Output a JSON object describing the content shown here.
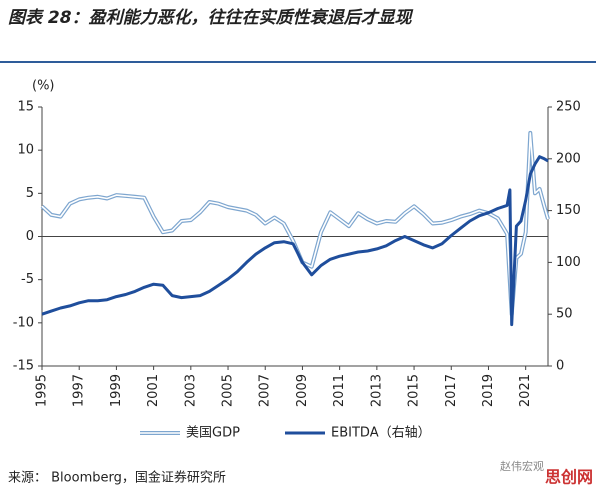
{
  "chart_data": {
    "type": "line",
    "title": "图表 28：盈利能力恶化，往往在实质性衰退后才显现",
    "y_label": "(%)",
    "source": "来源： Bloomberg，国金证券研究所",
    "watermark": "赵伟宏观",
    "watermark2": "思创网",
    "xlim": [
      1995,
      2022.2
    ],
    "xticks": [
      1995,
      1997,
      1999,
      2001,
      2003,
      2005,
      2007,
      2009,
      2011,
      2013,
      2015,
      2017,
      2019,
      2021
    ],
    "ylim": [
      -15,
      15
    ],
    "yticks": [
      -15,
      -10,
      -5,
      0,
      5,
      10,
      15
    ],
    "y2lim": [
      0,
      250
    ],
    "y2ticks": [
      0,
      50,
      100,
      150,
      200,
      250
    ],
    "series": [
      {
        "name": "美国GDP",
        "color": "#7ea6cf",
        "style": "double",
        "x": [
          1995,
          1995.5,
          1996,
          1996.5,
          1997,
          1997.5,
          1998,
          1998.5,
          1999,
          1999.5,
          2000,
          2000.5,
          2001,
          2001.5,
          2002,
          2002.5,
          2003,
          2003.5,
          2004,
          2004.5,
          2005,
          2005.5,
          2006,
          2006.5,
          2007,
          2007.5,
          2008,
          2008.5,
          2009,
          2009.5,
          2010,
          2010.5,
          2011,
          2011.5,
          2012,
          2012.5,
          2013,
          2013.5,
          2014,
          2014.5,
          2015,
          2015.5,
          2016,
          2016.5,
          2017,
          2017.5,
          2018,
          2018.5,
          2019,
          2019.5,
          2020,
          2020.25,
          2020.5,
          2020.75,
          2021,
          2021.25,
          2021.5,
          2021.75,
          2022,
          2022.2
        ],
        "values": [
          3.5,
          2.5,
          2.3,
          3.8,
          4.3,
          4.5,
          4.6,
          4.4,
          4.8,
          4.7,
          4.6,
          4.5,
          2.3,
          0.5,
          0.7,
          1.8,
          1.9,
          2.8,
          4.0,
          3.8,
          3.4,
          3.2,
          3.0,
          2.5,
          1.5,
          2.2,
          1.5,
          -0.5,
          -3.0,
          -3.5,
          0.5,
          2.8,
          2.0,
          1.2,
          2.7,
          2.0,
          1.5,
          1.8,
          1.7,
          2.7,
          3.5,
          2.6,
          1.5,
          1.6,
          1.9,
          2.3,
          2.6,
          3.0,
          2.7,
          2.1,
          0.3,
          -9.0,
          -2.5,
          -2.0,
          0.5,
          12.0,
          5.0,
          5.5,
          3.5,
          2.0
        ]
      },
      {
        "name": "EBITDA（右轴）",
        "color": "#1f4e9c",
        "axis": "y2",
        "style": "thick",
        "x": [
          1995,
          1995.5,
          1996,
          1996.5,
          1997,
          1997.5,
          1998,
          1998.5,
          1999,
          1999.5,
          2000,
          2000.5,
          2001,
          2001.5,
          2002,
          2002.5,
          2003,
          2003.5,
          2004,
          2004.5,
          2005,
          2005.5,
          2006,
          2006.5,
          2007,
          2007.5,
          2008,
          2008.5,
          2009,
          2009.5,
          2010,
          2010.5,
          2011,
          2011.5,
          2012,
          2012.5,
          2013,
          2013.5,
          2014,
          2014.5,
          2015,
          2015.5,
          2016,
          2016.5,
          2017,
          2017.5,
          2018,
          2018.5,
          2019,
          2019.5,
          2020,
          2020.15,
          2020.25,
          2020.5,
          2020.75,
          2021,
          2021.25,
          2021.5,
          2021.75,
          2022,
          2022.2
        ],
        "values": [
          50,
          53,
          56,
          58,
          61,
          63,
          63,
          64,
          67,
          69,
          72,
          76,
          79,
          78,
          68,
          66,
          67,
          68,
          72,
          78,
          84,
          91,
          100,
          108,
          114,
          119,
          120,
          118,
          100,
          88,
          97,
          103,
          106,
          108,
          110,
          111,
          113,
          116,
          121,
          125,
          121,
          117,
          114,
          118,
          126,
          133,
          140,
          145,
          148,
          152,
          155,
          170,
          40,
          135,
          140,
          160,
          185,
          195,
          202,
          200,
          198
        ]
      }
    ]
  }
}
